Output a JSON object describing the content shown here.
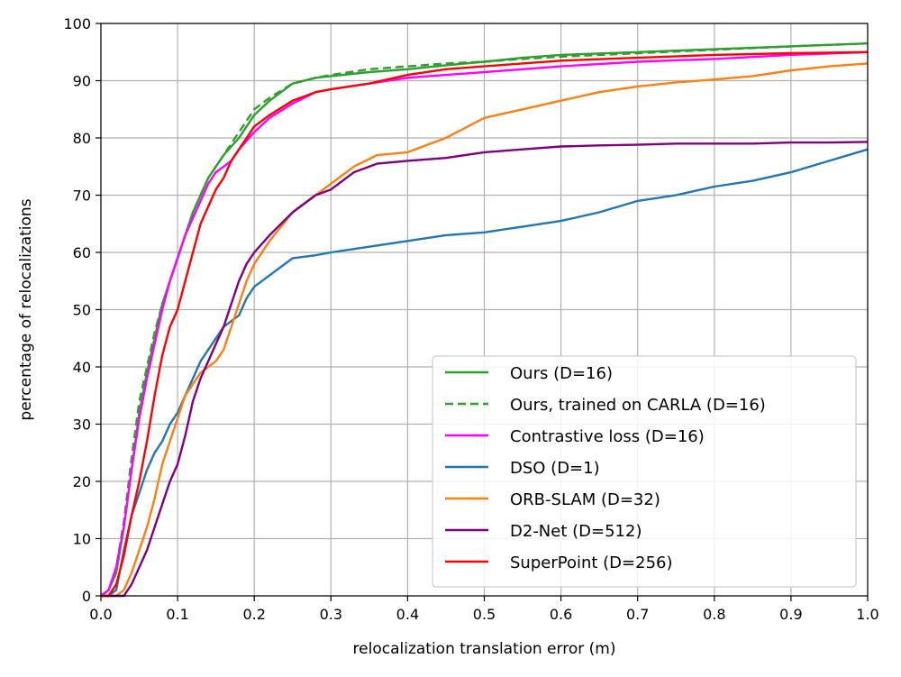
{
  "chart_data": {
    "type": "line",
    "title": "",
    "xlabel": "relocalization translation error (m)",
    "ylabel": "percentage of relocalizations",
    "xlim": [
      0.0,
      1.0
    ],
    "ylim": [
      0,
      100
    ],
    "xticks": [
      "0.0",
      "0.1",
      "0.2",
      "0.3",
      "0.4",
      "0.5",
      "0.6",
      "0.7",
      "0.8",
      "0.9",
      "1.0"
    ],
    "yticks": [
      "0",
      "10",
      "20",
      "30",
      "40",
      "50",
      "60",
      "70",
      "80",
      "90",
      "100"
    ],
    "grid": true,
    "legend_position": "lower-right",
    "series": [
      {
        "name": "Ours (D=16)",
        "color": "#2ca02c",
        "dash": "solid",
        "x": [
          0.0,
          0.01,
          0.02,
          0.03,
          0.04,
          0.05,
          0.06,
          0.07,
          0.08,
          0.09,
          0.1,
          0.11,
          0.12,
          0.13,
          0.14,
          0.15,
          0.16,
          0.17,
          0.18,
          0.19,
          0.2,
          0.22,
          0.25,
          0.28,
          0.3,
          0.35,
          0.4,
          0.45,
          0.5,
          0.55,
          0.6,
          0.7,
          0.8,
          0.9,
          1.0
        ],
        "y": [
          0,
          1,
          4,
          12,
          22,
          32,
          39,
          45,
          51,
          55,
          59,
          63,
          67,
          70,
          73,
          75,
          77,
          78.5,
          80,
          82,
          84,
          86.5,
          89.5,
          90.5,
          90.8,
          91.5,
          92,
          92.7,
          93.3,
          94,
          94.5,
          95,
          95.5,
          96,
          96.5
        ]
      },
      {
        "name": "Ours, trained on CARLA (D=16)",
        "color": "#2ca02c",
        "dash": "dashed",
        "x": [
          0.0,
          0.01,
          0.02,
          0.03,
          0.04,
          0.05,
          0.06,
          0.07,
          0.08,
          0.09,
          0.1,
          0.11,
          0.12,
          0.13,
          0.14,
          0.15,
          0.16,
          0.17,
          0.18,
          0.19,
          0.2,
          0.22,
          0.25,
          0.28,
          0.3,
          0.35,
          0.4,
          0.45,
          0.5,
          0.55,
          0.6,
          0.7,
          0.8,
          0.9,
          1.0
        ],
        "y": [
          0,
          1,
          5,
          13,
          24,
          34,
          40,
          46,
          51,
          55,
          59,
          63,
          67,
          70,
          73,
          75,
          77,
          79,
          81,
          83,
          85,
          87,
          89.5,
          90.5,
          91,
          92,
          92.5,
          93,
          93.3,
          93.8,
          94.2,
          94.8,
          95.4,
          96,
          96.5
        ]
      },
      {
        "name": "Contrastive loss (D=16)",
        "color": "#ff00ff",
        "dash": "solid",
        "x": [
          0.0,
          0.01,
          0.02,
          0.03,
          0.04,
          0.05,
          0.06,
          0.07,
          0.08,
          0.09,
          0.1,
          0.11,
          0.12,
          0.13,
          0.14,
          0.15,
          0.16,
          0.17,
          0.18,
          0.2,
          0.22,
          0.25,
          0.28,
          0.3,
          0.35,
          0.4,
          0.45,
          0.5,
          0.55,
          0.6,
          0.7,
          0.8,
          0.9,
          1.0
        ],
        "y": [
          0,
          1,
          5,
          12,
          22,
          31,
          38,
          44,
          50,
          55,
          59,
          63,
          66,
          69,
          72,
          74,
          75,
          76,
          78,
          81,
          83.5,
          86,
          88,
          88.5,
          89.5,
          90.5,
          91,
          91.5,
          92,
          92.5,
          93.3,
          93.8,
          94.5,
          95
        ]
      },
      {
        "name": "DSO (D=1)",
        "color": "#1f77b4",
        "dash": "solid",
        "x": [
          0.0,
          0.01,
          0.02,
          0.03,
          0.04,
          0.05,
          0.06,
          0.07,
          0.08,
          0.09,
          0.1,
          0.11,
          0.12,
          0.13,
          0.14,
          0.15,
          0.16,
          0.17,
          0.18,
          0.19,
          0.2,
          0.22,
          0.25,
          0.28,
          0.3,
          0.35,
          0.4,
          0.45,
          0.5,
          0.55,
          0.6,
          0.65,
          0.7,
          0.75,
          0.8,
          0.85,
          0.9,
          0.95,
          1.0
        ],
        "y": [
          0,
          0,
          1,
          8,
          14,
          18,
          22,
          25,
          27,
          30,
          32,
          35,
          38,
          41,
          43,
          45,
          47,
          48,
          49,
          52,
          54,
          56,
          59,
          59.5,
          60,
          61,
          62,
          63,
          63.5,
          64.5,
          65.5,
          67,
          69,
          70,
          71.5,
          72.5,
          74,
          76,
          78
        ]
      },
      {
        "name": "ORB-SLAM (D=32)",
        "color": "#ff7f0e",
        "dash": "solid",
        "x": [
          0.0,
          0.01,
          0.02,
          0.03,
          0.04,
          0.05,
          0.06,
          0.07,
          0.08,
          0.09,
          0.1,
          0.11,
          0.12,
          0.13,
          0.14,
          0.15,
          0.16,
          0.17,
          0.18,
          0.19,
          0.2,
          0.22,
          0.25,
          0.28,
          0.3,
          0.33,
          0.36,
          0.4,
          0.45,
          0.5,
          0.55,
          0.6,
          0.65,
          0.7,
          0.75,
          0.8,
          0.85,
          0.9,
          0.95,
          1.0
        ],
        "y": [
          0,
          0,
          0,
          1,
          4,
          8,
          12,
          17,
          23,
          27,
          31,
          35,
          37,
          39,
          40,
          41,
          43,
          47,
          51,
          55,
          58,
          62,
          67,
          70,
          72,
          75,
          77,
          77.5,
          80,
          83.5,
          85,
          86.5,
          88,
          89,
          89.7,
          90.2,
          90.8,
          91.8,
          92.5,
          93
        ]
      },
      {
        "name": "D2-Net (D=512)",
        "color": "#800080",
        "dash": "solid",
        "x": [
          0.0,
          0.01,
          0.02,
          0.03,
          0.04,
          0.05,
          0.06,
          0.07,
          0.08,
          0.09,
          0.1,
          0.11,
          0.12,
          0.13,
          0.14,
          0.15,
          0.16,
          0.17,
          0.18,
          0.19,
          0.2,
          0.22,
          0.25,
          0.28,
          0.3,
          0.33,
          0.36,
          0.4,
          0.45,
          0.5,
          0.55,
          0.6,
          0.65,
          0.7,
          0.75,
          0.8,
          0.85,
          0.9,
          0.95,
          1.0
        ],
        "y": [
          0,
          0,
          0,
          0,
          2,
          5,
          8,
          12,
          16,
          20,
          23,
          28,
          34,
          38,
          41,
          44,
          47,
          51,
          55,
          58,
          60,
          63,
          67,
          70,
          71,
          74,
          75.5,
          76,
          76.5,
          77.5,
          78,
          78.5,
          78.7,
          78.8,
          79,
          79,
          79,
          79.2,
          79.2,
          79.3
        ]
      },
      {
        "name": "SuperPoint (D=256)",
        "color": "#ff0000",
        "dash": "solid",
        "x": [
          0.0,
          0.01,
          0.02,
          0.03,
          0.04,
          0.05,
          0.06,
          0.07,
          0.08,
          0.09,
          0.1,
          0.11,
          0.12,
          0.13,
          0.14,
          0.15,
          0.16,
          0.17,
          0.18,
          0.19,
          0.2,
          0.22,
          0.25,
          0.28,
          0.3,
          0.35,
          0.4,
          0.45,
          0.5,
          0.55,
          0.6,
          0.7,
          0.8,
          0.9,
          1.0
        ],
        "y": [
          0,
          0,
          2,
          7,
          14,
          20,
          27,
          35,
          42,
          47,
          50,
          55,
          60,
          65,
          68,
          71,
          73,
          76,
          78,
          80,
          82,
          84,
          86.5,
          88,
          88.5,
          89.5,
          91,
          92,
          92.5,
          93,
          93.5,
          94,
          94.5,
          94.8,
          95
        ]
      }
    ]
  }
}
